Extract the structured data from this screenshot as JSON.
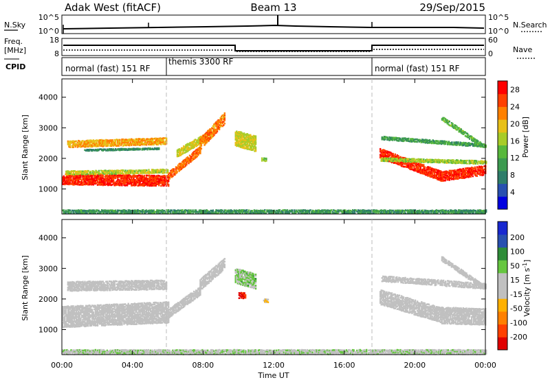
{
  "header": {
    "radar": "Adak West (fitACF)",
    "beam": "Beam 13",
    "date": "29/Sep/2015"
  },
  "top_panel": {
    "left_label": "N.Sky",
    "left_ticks": [
      "10^5",
      "10^0"
    ],
    "right_label": "N.Search",
    "right_ticks": [
      "10^5",
      "10^0"
    ]
  },
  "freq_panel": {
    "left_label_1": "Freq.",
    "left_label_2": "[MHz]",
    "left_ticks": [
      "18",
      "8"
    ],
    "right_label": "Nave",
    "right_ticks": [
      "60",
      "0"
    ],
    "cpid_label": "CPID"
  },
  "cpid_segments": [
    {
      "label": "normal (fast) 151 RF",
      "start_hour": 0,
      "end_hour": 6
    },
    {
      "label": "themis 3300 RF",
      "start_hour": 6,
      "end_hour": 18
    },
    {
      "label": "normal (fast) 151 RF",
      "start_hour": 18,
      "end_hour": 24
    }
  ],
  "colors": {
    "background": "#ffffff",
    "axis": "#000000",
    "power_scale": [
      "#0000e0",
      "#2850b0",
      "#2e7d6a",
      "#3c9a50",
      "#58b83c",
      "#a8cc28",
      "#e8c018",
      "#ff8000",
      "#ff4000",
      "#ff0000"
    ],
    "velocity_scale": [
      "#1828d0",
      "#2850b0",
      "#2e8c38",
      "#66c640",
      "#c0c0c0",
      "#c0c0c0",
      "#ffb000",
      "#ff8000",
      "#ff4000",
      "#e00000"
    ]
  },
  "chart_data": [
    {
      "type": "heatmap",
      "name": "power",
      "ylabel": "Slant Range [km]",
      "xlim": [
        0,
        24
      ],
      "ylim": [
        180,
        4600
      ],
      "yticks": [
        1000,
        2000,
        3000,
        4000
      ],
      "colorbar": {
        "label": "Power [dB]",
        "ticks": [
          4,
          8,
          12,
          16,
          20,
          24,
          28
        ],
        "range": [
          0,
          30
        ]
      },
      "regions": [
        {
          "x": [
            0,
            6.0
          ],
          "y_start": 1350,
          "y_end": 1300,
          "thickness": 360,
          "value": 27
        },
        {
          "x": [
            0.2,
            6.0
          ],
          "y_start": 1560,
          "y_end": 1620,
          "thickness": 140,
          "value": 17
        },
        {
          "x": [
            0.3,
            5.9
          ],
          "y_start": 2500,
          "y_end": 2600,
          "thickness": 230,
          "value": 21
        },
        {
          "x": [
            1.2,
            5.5
          ],
          "y_start": 2300,
          "y_end": 2350,
          "thickness": 60,
          "value": 9
        },
        {
          "x": [
            6.0,
            7.8
          ],
          "y_start": 1450,
          "y_end": 2300,
          "thickness": 260,
          "value": 24
        },
        {
          "x": [
            6.5,
            8.2
          ],
          "y_start": 2200,
          "y_end": 2750,
          "thickness": 260,
          "value": 18
        },
        {
          "x": [
            7.8,
            9.2
          ],
          "y_start": 2500,
          "y_end": 3350,
          "thickness": 380,
          "value": 23
        },
        {
          "x": [
            9.8,
            11.0
          ],
          "y_start": 2700,
          "y_end": 2500,
          "thickness": 520,
          "value": 18
        },
        {
          "x": [
            11.3,
            11.6
          ],
          "y_start": 2000,
          "y_end": 2000,
          "thickness": 120,
          "value": 14
        },
        {
          "x": [
            18.0,
            21.5
          ],
          "y_start": 2200,
          "y_end": 1450,
          "thickness": 330,
          "value": 27
        },
        {
          "x": [
            21.5,
            24.0
          ],
          "y_start": 1450,
          "y_end": 1650,
          "thickness": 330,
          "value": 27
        },
        {
          "x": [
            18.0,
            24.0
          ],
          "y_start": 2000,
          "y_end": 1900,
          "thickness": 120,
          "value": 16
        },
        {
          "x": [
            18.1,
            24.0
          ],
          "y_start": 2700,
          "y_end": 2450,
          "thickness": 120,
          "value": 11
        },
        {
          "x": [
            21.5,
            23.8
          ],
          "y_start": 3350,
          "y_end": 2450,
          "thickness": 150,
          "value": 13
        },
        {
          "x": [
            0,
            24.0
          ],
          "y_start": 290,
          "y_end": 290,
          "thickness": 130,
          "value": 10
        }
      ]
    },
    {
      "type": "heatmap",
      "name": "velocity",
      "ylabel": "Slant Range [km]",
      "xlabel": "Time UT",
      "xlim": [
        0,
        24
      ],
      "ylim": [
        180,
        4600
      ],
      "yticks": [
        1000,
        2000,
        3000,
        4000
      ],
      "xticks": [
        "00:00",
        "04:00",
        "08:00",
        "12:00",
        "16:00",
        "20:00",
        "00:00"
      ],
      "colorbar": {
        "label": "Velocity [m s^-1]",
        "ticks": [
          "200",
          "100",
          "50",
          "15",
          "-15",
          "-50",
          "-100",
          "-200"
        ],
        "range": [
          -250,
          250
        ]
      },
      "regions": [
        {
          "x": [
            0,
            6.0
          ],
          "y_start": 1450,
          "y_end": 1600,
          "thickness": 700,
          "value": 0
        },
        {
          "x": [
            0.3,
            5.9
          ],
          "y_start": 2450,
          "y_end": 2500,
          "thickness": 320,
          "value": 0
        },
        {
          "x": [
            6.0,
            7.8
          ],
          "y_start": 1550,
          "y_end": 2300,
          "thickness": 300,
          "value": 0
        },
        {
          "x": [
            7.8,
            9.2
          ],
          "y_start": 2500,
          "y_end": 3200,
          "thickness": 380,
          "value": 0
        },
        {
          "x": [
            9.8,
            11.0
          ],
          "y_start": 2800,
          "y_end": 2600,
          "thickness": 500,
          "value": 60
        },
        {
          "x": [
            10.0,
            10.4
          ],
          "y_start": 2150,
          "y_end": 2150,
          "thickness": 200,
          "value": -210
        },
        {
          "x": [
            11.4,
            11.7
          ],
          "y_start": 1980,
          "y_end": 1980,
          "thickness": 120,
          "value": -60
        },
        {
          "x": [
            18.0,
            21.5
          ],
          "y_start": 2100,
          "y_end": 1500,
          "thickness": 500,
          "value": 0
        },
        {
          "x": [
            21.5,
            24.0
          ],
          "y_start": 1500,
          "y_end": 1450,
          "thickness": 550,
          "value": 0
        },
        {
          "x": [
            18.1,
            24.0
          ],
          "y_start": 2700,
          "y_end": 2450,
          "thickness": 200,
          "value": 0
        },
        {
          "x": [
            21.5,
            23.8
          ],
          "y_start": 3350,
          "y_end": 2450,
          "thickness": 160,
          "value": 0
        },
        {
          "x": [
            0,
            24.0
          ],
          "y_start": 300,
          "y_end": 300,
          "thickness": 160,
          "value": 30
        }
      ]
    }
  ]
}
